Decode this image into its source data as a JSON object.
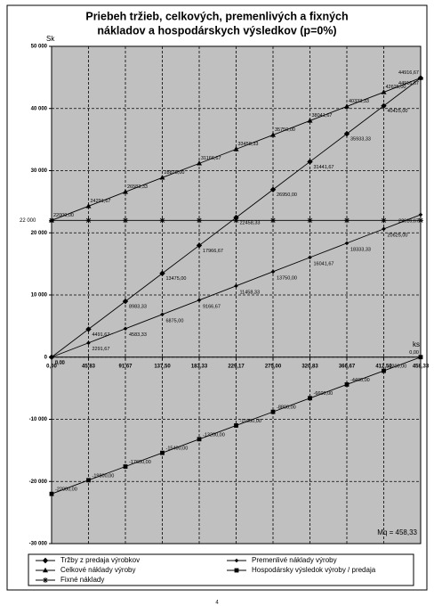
{
  "chart_data": {
    "type": "line",
    "title": [
      "Priebeh tržieb, celkových, premenlivých a fixných",
      "nákladov a hospodárskych výsledkov (p=0%)"
    ],
    "y_label": "Sk",
    "x_label": "ks",
    "annotation": "Mq = 458,33",
    "categories": [
      "0,00",
      "45,83",
      "91,67",
      "137,50",
      "183,33",
      "229,17",
      "275,00",
      "320,83",
      "366,67",
      "412,50",
      "458,33"
    ],
    "ylim": [
      -30000,
      50000
    ],
    "yticks": [
      {
        "value": -30000,
        "label": "-30 000"
      },
      {
        "value": -20000,
        "label": "-20 000"
      },
      {
        "value": -10000,
        "label": "-10 000"
      },
      0,
      {
        "value": 10000,
        "label": "10 000"
      },
      {
        "value": 20000,
        "label": "20 000"
      },
      {
        "value": 30000,
        "label": "30 000"
      },
      {
        "value": 40000,
        "label": "40 000"
      },
      {
        "value": 50000,
        "label": "50 000"
      }
    ],
    "y_marker": {
      "value": 22000,
      "label": "22 000"
    },
    "grid": true,
    "series": [
      {
        "name": "Tržby z predaja výrobkov",
        "color": "#000000",
        "marker": "diamond",
        "values": [
          0,
          4491.67,
          8983.33,
          13475.0,
          17966.67,
          22458.33,
          26950.0,
          31441.67,
          35933.33,
          40425.0,
          44916.67
        ],
        "value_labels": [
          "0,00",
          "4491,67",
          "8983,33",
          "13475,00",
          "17966,67",
          "22458,33",
          "26950,00",
          "31441,67",
          "35933,33",
          "40425,00",
          "44916,67"
        ]
      },
      {
        "name": "Premenlivé náklady výroby",
        "color": "#000000",
        "marker": "small-diamond",
        "values": [
          0,
          2291.67,
          4583.33,
          6875.0,
          9166.67,
          11458.33,
          13750.0,
          16041.67,
          18333.33,
          20625.0,
          22916.67
        ],
        "value_labels": [
          "0,00",
          "2291,67",
          "4583,33",
          "6875,00",
          "9166,67",
          "11458,33",
          "13750,00",
          "16041,67",
          "18333,33",
          "20625,00",
          "22916,67"
        ]
      },
      {
        "name": "Celkové náklady výroby",
        "color": "#000000",
        "marker": "triangle",
        "values": [
          22000,
          24291.67,
          26583.33,
          28875.0,
          31166.67,
          33458.33,
          35750.0,
          38041.67,
          40333.33,
          42625.0,
          44916.67
        ],
        "value_labels": [
          "22000,00",
          "24291,67",
          "26583,33",
          "28875,00",
          "31166,67",
          "33458,33",
          "35750,00",
          "38041,67",
          "40333,33",
          "42625,00",
          "44916,67"
        ]
      },
      {
        "name": "Hospodársky výsledok výroby / predaja",
        "color": "#000000",
        "marker": "square",
        "values": [
          -22000,
          -19800,
          -17600,
          -15400,
          -13200,
          -11000,
          -8800,
          -6600,
          -4400,
          -2200,
          0
        ],
        "value_labels": [
          "-22000,00",
          "-19800,00",
          "-17600,00",
          "-15400,00",
          "-13200,00",
          "-11000,00",
          "-8800,00",
          "-6600,00",
          "-4400,00",
          "-2200,00",
          "0,00"
        ]
      },
      {
        "name": "Fixné náklady",
        "color": "#000000",
        "marker": "asterisk",
        "values": [
          22000,
          22000,
          22000,
          22000,
          22000,
          22000,
          22000,
          22000,
          22000,
          22000,
          22000
        ]
      }
    ],
    "plot_background": "#c0c0c0"
  },
  "page_number": "4"
}
